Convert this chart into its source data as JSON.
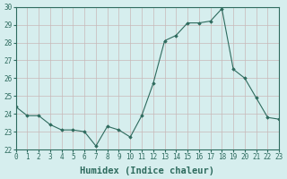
{
  "x": [
    0,
    1,
    2,
    3,
    4,
    5,
    6,
    7,
    8,
    9,
    10,
    11,
    12,
    13,
    14,
    15,
    16,
    17,
    18,
    19,
    20,
    21,
    22,
    23
  ],
  "y": [
    24.4,
    23.9,
    23.9,
    23.4,
    23.1,
    23.1,
    23.0,
    22.2,
    23.3,
    23.1,
    22.7,
    23.9,
    25.7,
    28.1,
    28.4,
    29.1,
    29.1,
    29.2,
    29.9,
    26.5,
    26.0,
    24.9,
    23.8,
    23.7
  ],
  "line_color": "#2e6b5e",
  "marker": "D",
  "marker_size": 1.8,
  "bg_color": "#d6eeee",
  "grid_color": "#c8b8b8",
  "xlabel": "Humidex (Indice chaleur)",
  "ylim": [
    22,
    30
  ],
  "xlim": [
    0,
    23
  ],
  "yticks": [
    22,
    23,
    24,
    25,
    26,
    27,
    28,
    29,
    30
  ],
  "xticks": [
    0,
    1,
    2,
    3,
    4,
    5,
    6,
    7,
    8,
    9,
    10,
    11,
    12,
    13,
    14,
    15,
    16,
    17,
    18,
    19,
    20,
    21,
    22,
    23
  ],
  "tick_color": "#2e6b5e",
  "label_fontsize": 5.5,
  "axis_label_fontsize": 7.5
}
